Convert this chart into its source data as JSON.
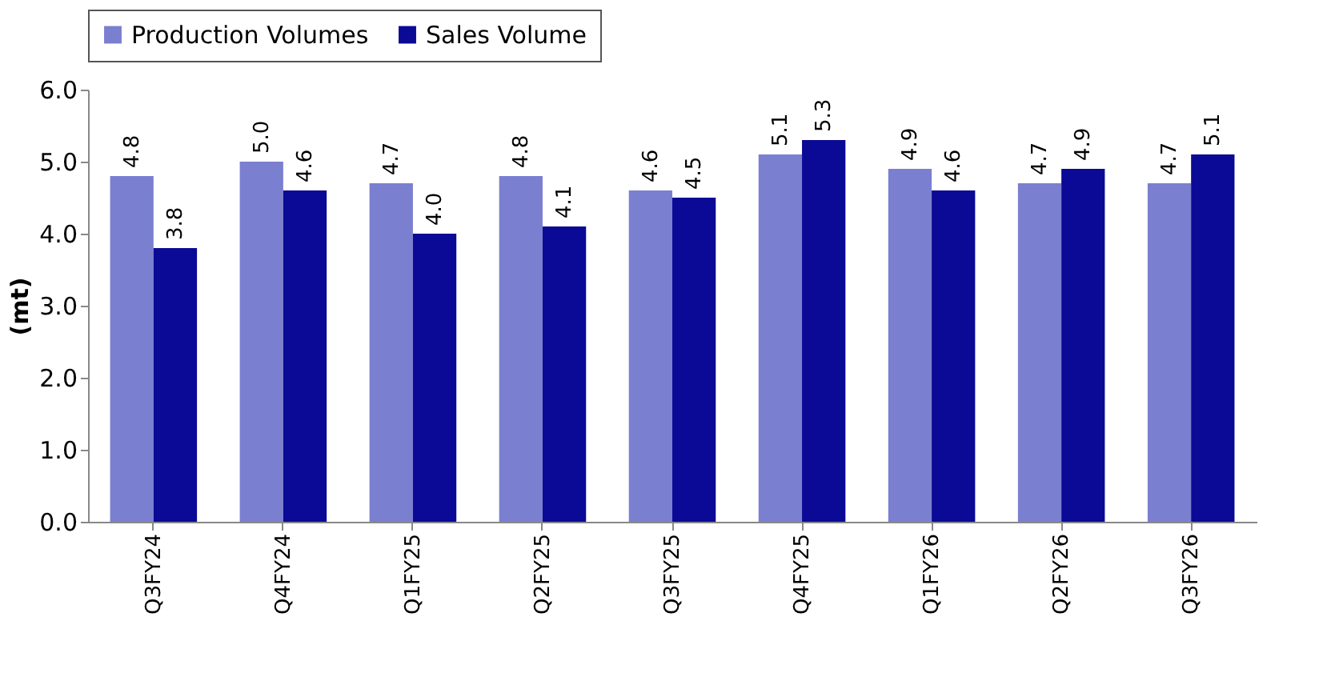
{
  "chart_data": {
    "type": "bar",
    "ylabel": "(mt)",
    "categories": [
      "Q3FY24",
      "Q4FY24",
      "Q1FY25",
      "Q2FY25",
      "Q3FY25",
      "Q4FY25",
      "Q1FY26",
      "Q2FY26",
      "Q3FY26"
    ],
    "series": [
      {
        "name": "Production Volumes",
        "color": "#7b7fd0",
        "values": [
          4.8,
          5.0,
          4.7,
          4.8,
          4.6,
          5.1,
          4.9,
          4.7,
          4.7
        ],
        "value_labels": [
          "4.8",
          "5.0",
          "4.7",
          "4.8",
          "4.6",
          "5.1",
          "4.9",
          "4.7",
          "4.7"
        ]
      },
      {
        "name": "Sales Volume",
        "color": "#0a0a96",
        "values": [
          3.8,
          4.6,
          4.0,
          4.1,
          4.5,
          5.3,
          4.6,
          4.9,
          5.1
        ],
        "value_labels": [
          "3.8",
          "4.6",
          "4.0",
          "4.1",
          "4.5",
          "5.3",
          "4.6",
          "4.9",
          "5.1"
        ]
      }
    ],
    "ylim": [
      0,
      6
    ],
    "yticks": [
      {
        "value": 0,
        "label": "0.0"
      },
      {
        "value": 1,
        "label": "1.0"
      },
      {
        "value": 2,
        "label": "2.0"
      },
      {
        "value": 3,
        "label": "3.0"
      },
      {
        "value": 4,
        "label": "4.0"
      },
      {
        "value": 5,
        "label": "5.0"
      },
      {
        "value": 6,
        "label": "6.0"
      }
    ],
    "legend": "top",
    "grid": false
  }
}
